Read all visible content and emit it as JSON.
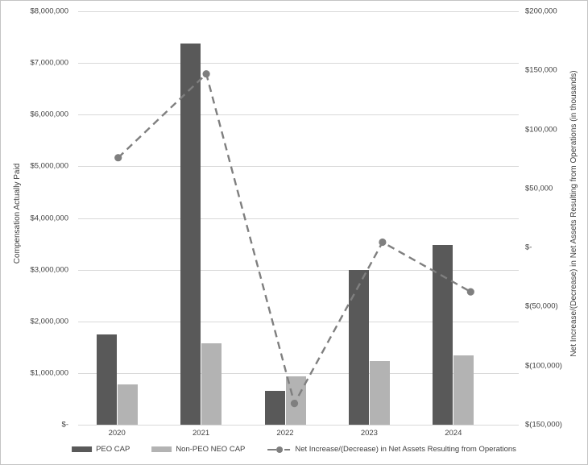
{
  "chart_data": {
    "type": "bar",
    "subtype": "combo-bar-line-dual-axis",
    "title": "",
    "categories": [
      "2020",
      "2021",
      "2022",
      "2023",
      "2024"
    ],
    "series": [
      {
        "name": "PEO CAP",
        "type": "bar",
        "axis": "left",
        "color": "#595959",
        "values": [
          1740000,
          7370000,
          660000,
          3000000,
          3480000
        ]
      },
      {
        "name": "Non-PEO NEO CAP",
        "type": "bar",
        "axis": "left",
        "color": "#b3b3b3",
        "values": [
          780000,
          1570000,
          940000,
          1240000,
          1340000
        ]
      },
      {
        "name": "Net Increase/(Decrease) in Net Assets Resulting from Operations",
        "type": "line",
        "line_style": "dashed-with-round-markers",
        "axis": "right",
        "color": "#7f7f7f",
        "values": [
          76000,
          147000,
          -132000,
          4500,
          -37500
        ]
      }
    ],
    "left_axis": {
      "title": "Compensation Actually Paid",
      "min": 0,
      "max": 8000000,
      "step": 1000000,
      "tick_labels": [
        "$8,000,000",
        "$7,000,000",
        "$6,000,000",
        "$5,000,000",
        "$4,000,000",
        "$3,000,000",
        "$2,000,000",
        "$1,000,000",
        "$-"
      ]
    },
    "right_axis": {
      "title": "Net Increase/(Decrease) in Net Assets Resulting from Operations (in thousands)",
      "min": -150000,
      "max": 200000,
      "step": 50000,
      "tick_labels": [
        "$200,000",
        "$150,000",
        "$100,000",
        "$50,000",
        "$-",
        "$(50,000)",
        "$(100,000)",
        "$(150,000)"
      ]
    },
    "grid": "horizontal",
    "legend_position": "bottom",
    "colors": {
      "grid": "#d9d9d9",
      "text": "#3f3f3f",
      "background": "#ffffff",
      "border": "#c4c4c4"
    }
  }
}
